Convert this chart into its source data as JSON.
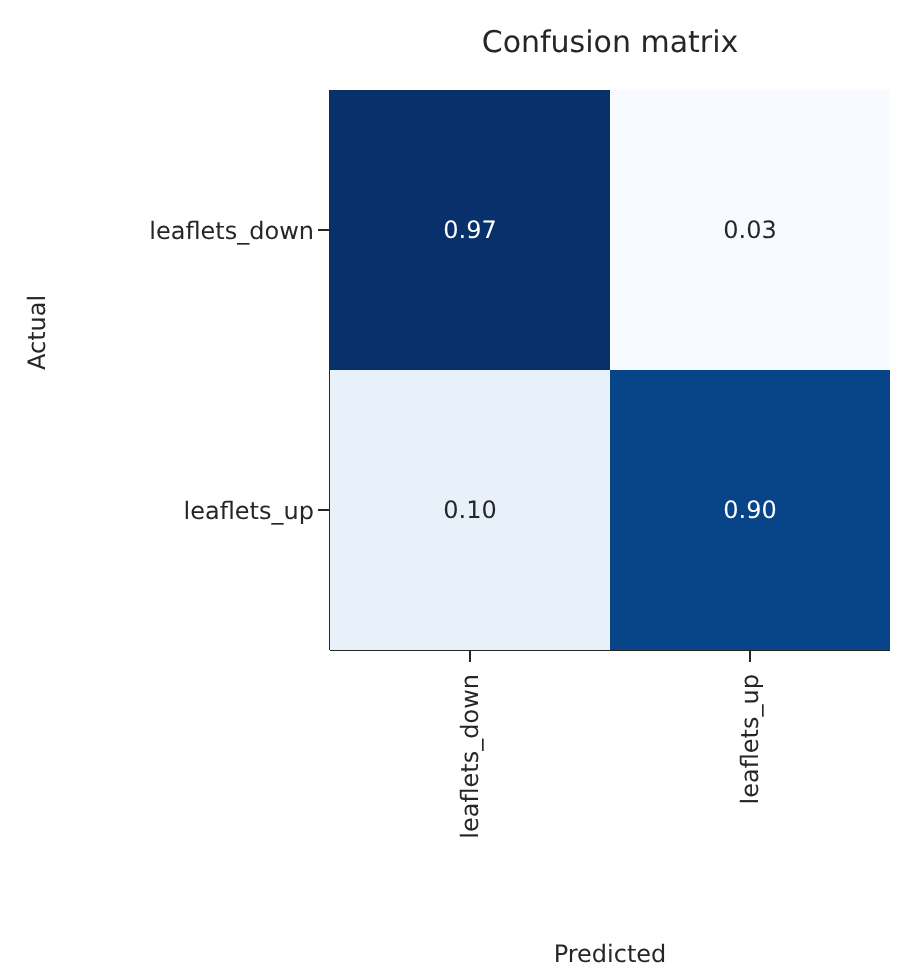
{
  "chart_data": {
    "type": "heatmap",
    "title": "Confusion matrix",
    "xlabel": "Predicted",
    "ylabel": "Actual",
    "categories": [
      "leaflets_down",
      "leaflets_up"
    ],
    "y_categories": [
      "leaflets_down",
      "leaflets_up"
    ],
    "cells": [
      [
        0.97,
        0.03
      ],
      [
        0.1,
        0.9
      ]
    ],
    "cell_labels": [
      [
        "0.97",
        "0.03"
      ],
      [
        "0.10",
        "0.90"
      ]
    ]
  }
}
